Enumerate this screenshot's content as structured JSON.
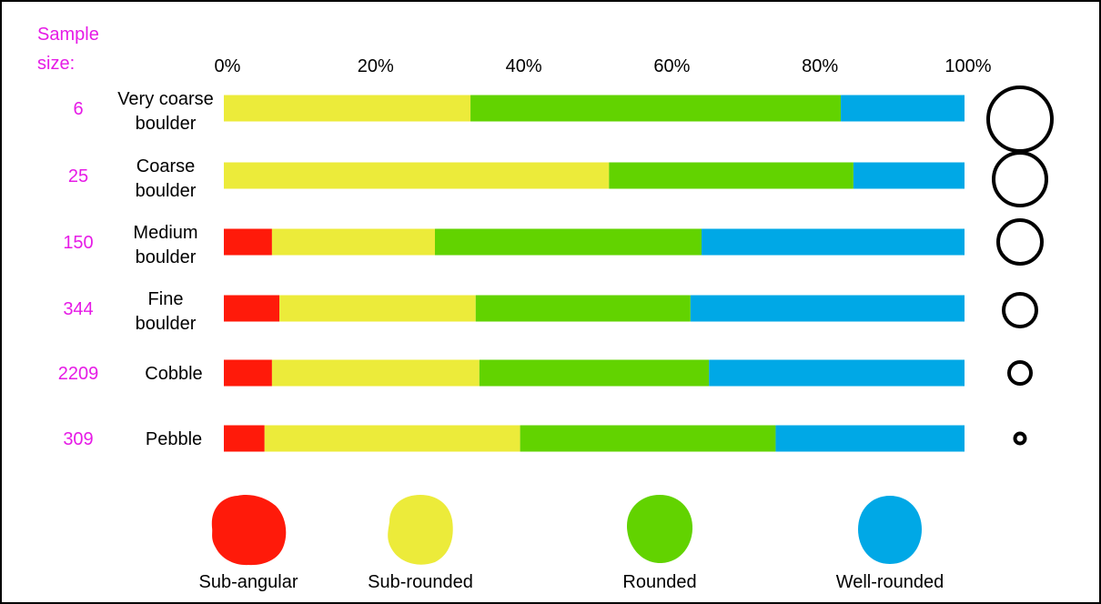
{
  "chart_data": {
    "type": "bar",
    "stacked": "percent",
    "orientation": "horizontal",
    "sample_size_label": [
      "Sample",
      "size:"
    ],
    "x_ticks": [
      "0%",
      "20%",
      "40%",
      "60%",
      "80%",
      "100%"
    ],
    "xlim": [
      0,
      100
    ],
    "categories": [
      {
        "label": [
          "Very coarse",
          "boulder"
        ],
        "sample_size": "6"
      },
      {
        "label": [
          "Coarse",
          "boulder"
        ],
        "sample_size": "25"
      },
      {
        "label": [
          "Medium",
          "boulder"
        ],
        "sample_size": "150"
      },
      {
        "label": [
          "Fine",
          "boulder"
        ],
        "sample_size": "344"
      },
      {
        "label": [
          "Cobble"
        ],
        "sample_size": "2209"
      },
      {
        "label": [
          "Pebble"
        ],
        "sample_size": "309"
      }
    ],
    "series": [
      {
        "name": "Sub-angular",
        "color": "#ff1a0a",
        "values": [
          0,
          0,
          6.5,
          7.5,
          6.5,
          5.5
        ]
      },
      {
        "name": "Sub-rounded",
        "color": "#eceb3a",
        "values": [
          33.3,
          52,
          22,
          26.5,
          28,
          34.5
        ]
      },
      {
        "name": "Rounded",
        "color": "#62d300",
        "values": [
          50,
          33,
          36,
          29,
          31,
          34.5
        ]
      },
      {
        "name": "Well-rounded",
        "color": "#00a8e6",
        "values": [
          16.7,
          15,
          35.5,
          37,
          34.5,
          25.5
        ]
      }
    ],
    "legend_position": "bottom",
    "grain_size_icons": "circles, size decreasing from Very coarse boulder to Pebble"
  }
}
